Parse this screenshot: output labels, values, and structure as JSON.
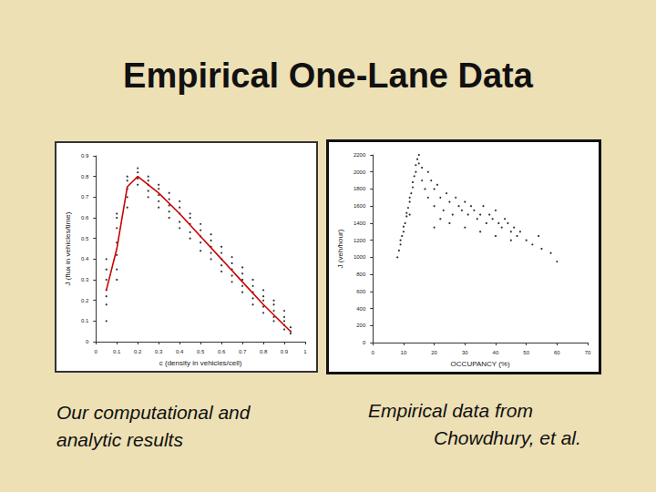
{
  "slide_title": "Empirical One-Lane Data",
  "captions": [
    [
      "Our computational and",
      "analytic results"
    ],
    [
      "Empirical data from",
      "Chowdhury, et al."
    ]
  ],
  "chart_data": [
    {
      "type": "scatter",
      "x_label": "c (density in vehicles/cell)",
      "y_label": "J (flux in vehicles/time)",
      "xlim": [
        0,
        1
      ],
      "xticks": [
        0,
        0.1,
        0.2,
        0.3,
        0.4,
        0.5,
        0.6,
        0.7,
        0.8,
        0.9,
        1
      ],
      "ylim": [
        0,
        0.9
      ],
      "yticks": [
        0,
        0.1,
        0.2,
        0.3,
        0.4,
        0.5,
        0.6,
        0.7,
        0.8,
        0.9
      ],
      "grid": false,
      "series": [
        {
          "type": "scatter",
          "color": "#000000",
          "marker": "circle",
          "x": [
            0.05,
            0.05,
            0.05,
            0.05,
            0.05,
            0.05,
            0.05,
            0.1,
            0.1,
            0.1,
            0.1,
            0.1,
            0.1,
            0.1,
            0.15,
            0.15,
            0.15,
            0.15,
            0.15,
            0.2,
            0.2,
            0.2,
            0.2,
            0.25,
            0.25,
            0.25,
            0.25,
            0.25,
            0.3,
            0.3,
            0.3,
            0.3,
            0.3,
            0.35,
            0.35,
            0.35,
            0.35,
            0.35,
            0.4,
            0.4,
            0.4,
            0.4,
            0.4,
            0.45,
            0.45,
            0.45,
            0.45,
            0.45,
            0.5,
            0.5,
            0.5,
            0.5,
            0.5,
            0.55,
            0.55,
            0.55,
            0.55,
            0.55,
            0.6,
            0.6,
            0.6,
            0.6,
            0.6,
            0.65,
            0.65,
            0.65,
            0.65,
            0.65,
            0.7,
            0.7,
            0.7,
            0.7,
            0.7,
            0.75,
            0.75,
            0.75,
            0.75,
            0.75,
            0.8,
            0.8,
            0.8,
            0.8,
            0.8,
            0.85,
            0.85,
            0.85,
            0.85,
            0.85,
            0.9,
            0.9,
            0.9,
            0.9,
            0.9,
            0.93,
            0.93,
            0.93
          ],
          "values": [
            0.1,
            0.18,
            0.22,
            0.25,
            0.3,
            0.35,
            0.4,
            0.3,
            0.35,
            0.42,
            0.48,
            0.55,
            0.6,
            0.62,
            0.65,
            0.7,
            0.74,
            0.78,
            0.8,
            0.76,
            0.79,
            0.82,
            0.84,
            0.7,
            0.73,
            0.76,
            0.78,
            0.8,
            0.65,
            0.68,
            0.71,
            0.74,
            0.76,
            0.6,
            0.63,
            0.66,
            0.69,
            0.72,
            0.55,
            0.58,
            0.62,
            0.65,
            0.68,
            0.5,
            0.53,
            0.57,
            0.6,
            0.62,
            0.44,
            0.48,
            0.51,
            0.54,
            0.57,
            0.4,
            0.43,
            0.46,
            0.49,
            0.52,
            0.34,
            0.37,
            0.4,
            0.43,
            0.46,
            0.29,
            0.32,
            0.35,
            0.38,
            0.41,
            0.24,
            0.27,
            0.3,
            0.33,
            0.36,
            0.18,
            0.21,
            0.24,
            0.27,
            0.3,
            0.14,
            0.17,
            0.2,
            0.22,
            0.25,
            0.1,
            0.12,
            0.15,
            0.18,
            0.2,
            0.06,
            0.08,
            0.1,
            0.12,
            0.15,
            0.04,
            0.05,
            0.07
          ]
        },
        {
          "type": "line",
          "color": "#cc0000",
          "line_style": "solid",
          "x": [
            0.05,
            0.1,
            0.15,
            0.18,
            0.2,
            0.3,
            0.4,
            0.5,
            0.6,
            0.7,
            0.8,
            0.9,
            0.93
          ],
          "values": [
            0.25,
            0.45,
            0.75,
            0.78,
            0.8,
            0.72,
            0.62,
            0.51,
            0.4,
            0.29,
            0.18,
            0.08,
            0.05
          ]
        }
      ]
    },
    {
      "type": "scatter",
      "x_label": "OCCUPANCY (%)",
      "y_label": "J (veh/hour)",
      "xlim": [
        0,
        70
      ],
      "xticks": [
        0,
        10,
        20,
        30,
        40,
        50,
        60,
        70
      ],
      "ylim": [
        0,
        2200
      ],
      "yticks": [
        0,
        200,
        400,
        600,
        800,
        1000,
        1200,
        1400,
        1600,
        1800,
        2000,
        2200
      ],
      "grid": false,
      "series": [
        {
          "type": "scatter",
          "color": "#000000",
          "marker": "circle",
          "x": [
            8,
            8.5,
            9,
            9,
            9.5,
            10,
            10,
            10.5,
            11,
            11,
            11.5,
            12,
            12,
            12.5,
            13,
            13,
            13.5,
            14,
            14,
            14.5,
            15,
            15,
            16,
            16,
            17,
            18,
            18,
            19,
            20,
            20,
            21,
            22,
            23,
            24,
            25,
            26,
            27,
            28,
            29,
            30,
            31,
            32,
            33,
            34,
            35,
            36,
            37,
            38,
            39,
            40,
            41,
            42,
            43,
            44,
            45,
            46,
            47,
            48,
            50,
            52,
            54,
            55,
            58,
            60,
            22,
            25,
            30,
            35,
            40,
            45,
            12,
            20
          ],
          "values": [
            1000,
            1080,
            1150,
            1200,
            1250,
            1300,
            1360,
            1400,
            1480,
            1520,
            1580,
            1650,
            1700,
            1750,
            1820,
            1880,
            1950,
            2000,
            2080,
            2150,
            2200,
            2100,
            2050,
            1900,
            1800,
            2000,
            1700,
            1900,
            1600,
            1800,
            1850,
            1700,
            1550,
            1750,
            1650,
            1500,
            1700,
            1600,
            1550,
            1650,
            1500,
            1600,
            1550,
            1450,
            1500,
            1600,
            1400,
            1500,
            1450,
            1550,
            1400,
            1350,
            1450,
            1400,
            1300,
            1350,
            1250,
            1300,
            1200,
            1150,
            1250,
            1100,
            1050,
            950,
            1450,
            1400,
            1350,
            1300,
            1250,
            1200,
            1500,
            1350
          ]
        }
      ]
    }
  ]
}
